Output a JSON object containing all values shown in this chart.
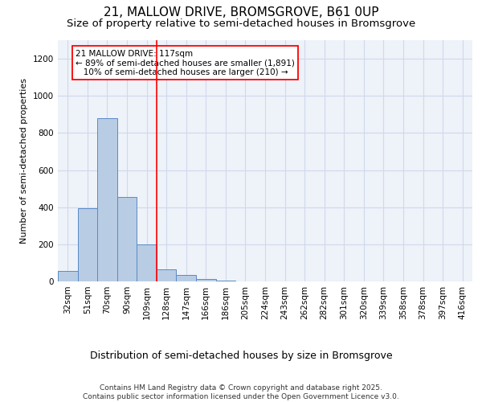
{
  "title1": "21, MALLOW DRIVE, BROMSGROVE, B61 0UP",
  "title2": "Size of property relative to semi-detached houses in Bromsgrove",
  "xlabel": "Distribution of semi-detached houses by size in Bromsgrove",
  "ylabel": "Number of semi-detached properties",
  "footer": "Contains HM Land Registry data © Crown copyright and database right 2025.\nContains public sector information licensed under the Open Government Licence v3.0.",
  "categories": [
    "32sqm",
    "51sqm",
    "70sqm",
    "90sqm",
    "109sqm",
    "128sqm",
    "147sqm",
    "166sqm",
    "186sqm",
    "205sqm",
    "224sqm",
    "243sqm",
    "262sqm",
    "282sqm",
    "301sqm",
    "320sqm",
    "339sqm",
    "358sqm",
    "378sqm",
    "397sqm",
    "416sqm"
  ],
  "bar_heights": [
    55,
    395,
    880,
    455,
    200,
    65,
    35,
    15,
    5,
    2,
    1,
    0,
    0,
    0,
    0,
    0,
    0,
    0,
    0,
    0,
    0
  ],
  "bar_color": "#b8cce4",
  "bar_edge_color": "#5a8ac6",
  "grid_color": "#d0d8ea",
  "background_color": "#eef2f9",
  "annotation_text": "21 MALLOW DRIVE: 117sqm\n← 89% of semi-detached houses are smaller (1,891)\n   10% of semi-detached houses are larger (210) →",
  "vline_position": 4.5,
  "vline_color": "red",
  "ylim": [
    0,
    1300
  ],
  "yticks": [
    0,
    200,
    400,
    600,
    800,
    1000,
    1200
  ],
  "title1_fontsize": 11,
  "title2_fontsize": 9.5,
  "xlabel_fontsize": 9,
  "ylabel_fontsize": 8,
  "tick_fontsize": 7.5,
  "footer_fontsize": 6.5,
  "annot_fontsize": 7.5
}
